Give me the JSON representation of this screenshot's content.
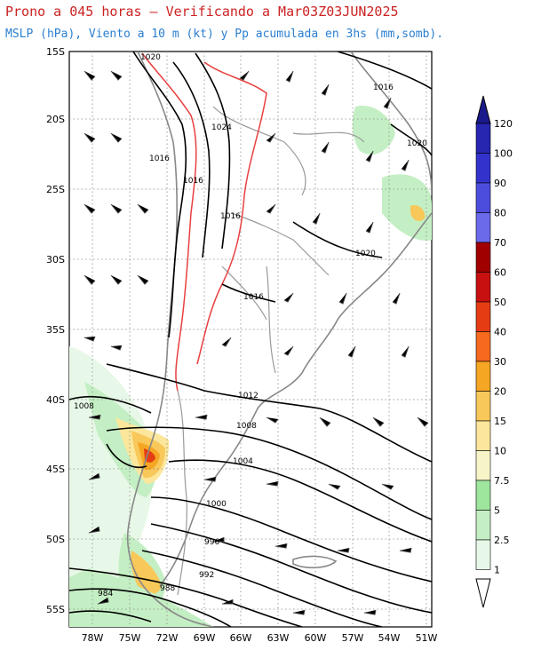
{
  "header": {
    "title": "Prono a 045 horas – Verificando a Mar03Z03JUN2025",
    "subtitle": "MSLP (hPa), Viento a 10 m (kt) y Pp acumulada en 3hs (mm,somb).",
    "title_color": "#cc2222",
    "subtitle_color": "#2a7fd0"
  },
  "map": {
    "lat_labels": [
      "15S",
      "20S",
      "25S",
      "30S",
      "35S",
      "40S",
      "45S",
      "50S",
      "55S"
    ],
    "lon_labels": [
      "78W",
      "75W",
      "72W",
      "69W",
      "66W",
      "63W",
      "60W",
      "57W",
      "54W",
      "51W"
    ],
    "isobar_labels": [
      "1020",
      "1024",
      "1016",
      "1016",
      "1016",
      "1016",
      "1020",
      "1016",
      "1020",
      "1012",
      "1008",
      "1008",
      "1004",
      "1000",
      "996",
      "992",
      "988",
      "984"
    ]
  },
  "colorbar": {
    "levels": [
      "120",
      "100",
      "90",
      "80",
      "70",
      "60",
      "50",
      "40",
      "30",
      "20",
      "15",
      "10",
      "7.5",
      "5",
      "2.5",
      "1"
    ],
    "colors": [
      "#1a1a8c",
      "#2626b0",
      "#3333cc",
      "#4d4ddd",
      "#6a6aea",
      "#a00000",
      "#c81010",
      "#e63c14",
      "#f56a1e",
      "#f5a623",
      "#f8c85a",
      "#fbe69b",
      "#f5f5c8",
      "#9ee59e",
      "#c4efc4",
      "#e8f8e8"
    ]
  }
}
